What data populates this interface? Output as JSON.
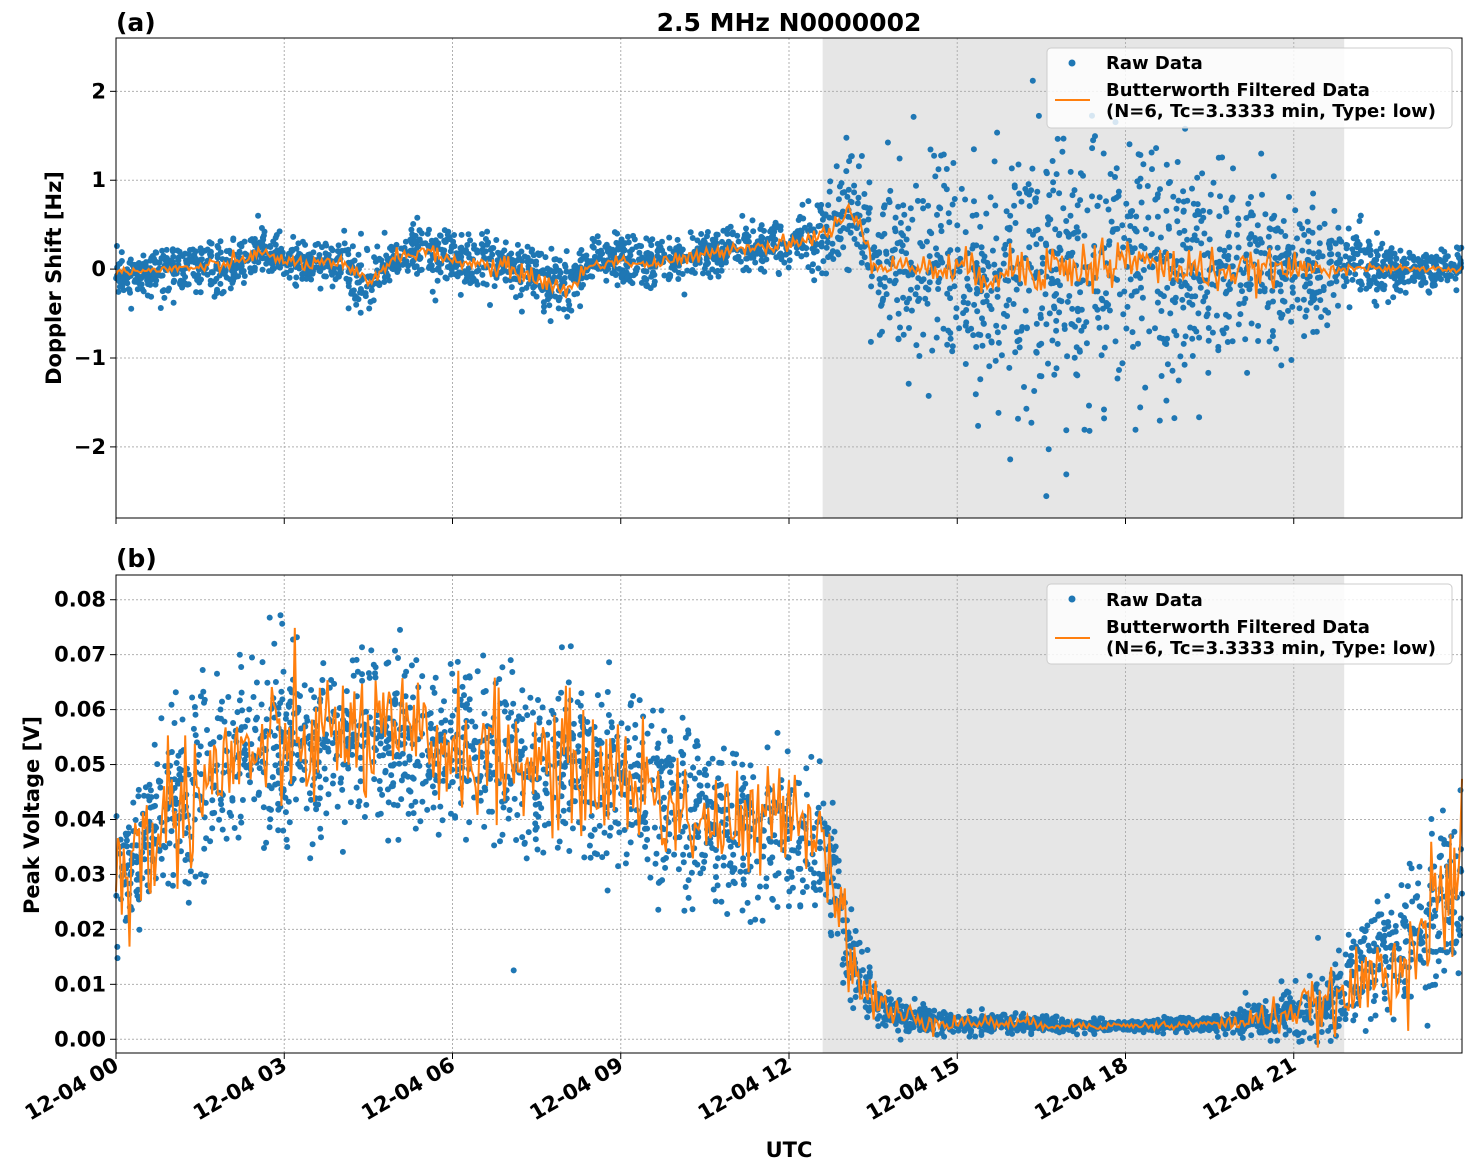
{
  "colors": {
    "raw": "#1f77b4",
    "filtered": "#ff7f0e",
    "shade": "#e6e6e6",
    "grid": "#b0b0b0"
  },
  "figure": {
    "title": "2.5 MHz N0000002",
    "xlabel": "UTC",
    "x_ticks": [
      "12-04 00",
      "12-04 03",
      "12-04 06",
      "12-04 09",
      "12-04 12",
      "12-04 15",
      "12-04 18",
      "12-04 21"
    ]
  },
  "chart_data": [
    {
      "type": "scatter",
      "panel_label": "(a)",
      "ylabel": "Doppler Shift [Hz]",
      "x_unit": "UTC hour of 12-04",
      "xlim": [
        0,
        24
      ],
      "ylim": [
        -2.8,
        2.6
      ],
      "y_ticks": [
        2,
        1,
        0,
        -1,
        -2
      ],
      "y_tick_labels": [
        "2",
        "1",
        "0",
        "−1",
        "−2"
      ],
      "grid": true,
      "legend_position": "top-right",
      "shaded_interval": [
        12.6,
        21.9
      ],
      "x_ticks_labeled": false,
      "series": [
        {
          "name": "Raw Data",
          "style": "points",
          "x": [
            0,
            0.5,
            1,
            1.5,
            1.75,
            2,
            2.5,
            3,
            3.5,
            4,
            4.5,
            5,
            5.5,
            6,
            6.5,
            7,
            7.5,
            8,
            8.5,
            9,
            9.5,
            10,
            10.5,
            11,
            11.5,
            12,
            12.5,
            12.8,
            13,
            13.3,
            13.5,
            14,
            14.5,
            15,
            15.5,
            16,
            16.5,
            17,
            17.5,
            18,
            18.5,
            19,
            19.5,
            20,
            20.5,
            21,
            21.5,
            22,
            22.5,
            23,
            23.5,
            24
          ],
          "center": [
            -0.05,
            -0.05,
            0,
            0,
            0.05,
            0,
            0.2,
            0.1,
            0.05,
            0.05,
            -0.15,
            0.15,
            0.2,
            0.1,
            0.05,
            0,
            -0.1,
            -0.2,
            0.1,
            0.1,
            0.05,
            0.1,
            0.15,
            0.25,
            0.25,
            0.3,
            0.35,
            0.5,
            0.65,
            0.55,
            0.05,
            0.05,
            0,
            0,
            -0.05,
            0,
            0,
            -0.05,
            0.05,
            0,
            0,
            0,
            0,
            0,
            0,
            0,
            0,
            0.05,
            0,
            0,
            0,
            0
          ],
          "spread": [
            0.3,
            0.3,
            0.35,
            0.4,
            0.5,
            0.35,
            0.35,
            0.35,
            0.35,
            0.45,
            0.4,
            0.35,
            0.4,
            0.4,
            0.4,
            0.5,
            0.45,
            0.5,
            0.35,
            0.35,
            0.35,
            0.35,
            0.35,
            0.35,
            0.35,
            0.35,
            0.5,
            0.7,
            0.9,
            1.0,
            1.1,
            1.2,
            1.3,
            1.4,
            1.6,
            1.9,
            2.0,
            2.1,
            2.0,
            2.0,
            1.9,
            1.8,
            1.6,
            1.4,
            1.2,
            1.0,
            0.8,
            0.6,
            0.4,
            0.35,
            0.3,
            0.3
          ]
        },
        {
          "name": "Butterworth Filtered Data\n(N=6, Tc=3.3333 min, Type: low)",
          "style": "line",
          "x": [
            0,
            0.5,
            1,
            1.5,
            2,
            2.5,
            3,
            3.5,
            4,
            4.5,
            5,
            5.5,
            6,
            6.5,
            7,
            7.5,
            8,
            8.5,
            9,
            9.5,
            10,
            10.5,
            11,
            11.5,
            12,
            12.5,
            12.8,
            13,
            13.3,
            13.5,
            14,
            14.5,
            15,
            15.5,
            16,
            16.5,
            17,
            17.5,
            18,
            18.5,
            19,
            19.5,
            20,
            20.5,
            21,
            21.5,
            22,
            22.5,
            23,
            23.5,
            24
          ],
          "y": [
            -0.02,
            -0.02,
            0.0,
            0.02,
            0.05,
            0.18,
            0.1,
            0.05,
            0.05,
            -0.15,
            0.15,
            0.2,
            0.1,
            0.05,
            0.0,
            -0.1,
            -0.25,
            0.05,
            0.1,
            0.05,
            0.1,
            0.15,
            0.25,
            0.25,
            0.3,
            0.35,
            0.45,
            0.6,
            0.55,
            0.05,
            0.05,
            0.0,
            0.0,
            -0.05,
            0.0,
            0.05,
            0.0,
            0.05,
            0.1,
            0.05,
            0.0,
            0.0,
            -0.05,
            0.0,
            0.0,
            0.0,
            0.02,
            0.0,
            0.0,
            0.0,
            0.0
          ],
          "noise": [
            0.02,
            0.02,
            0.03,
            0.04,
            0.04,
            0.04,
            0.04,
            0.04,
            0.05,
            0.05,
            0.04,
            0.04,
            0.04,
            0.05,
            0.06,
            0.06,
            0.06,
            0.04,
            0.04,
            0.04,
            0.04,
            0.04,
            0.04,
            0.04,
            0.05,
            0.06,
            0.08,
            0.08,
            0.08,
            0.05,
            0.06,
            0.08,
            0.1,
            0.12,
            0.14,
            0.16,
            0.16,
            0.16,
            0.16,
            0.14,
            0.13,
            0.12,
            0.11,
            0.1,
            0.08,
            0.05,
            0.03,
            0.02,
            0.02,
            0.02,
            0.02
          ]
        }
      ]
    },
    {
      "type": "scatter",
      "panel_label": "(b)",
      "ylabel": "Peak Voltage [V]",
      "x_unit": "UTC hour of 12-04",
      "xlim": [
        0,
        24
      ],
      "ylim": [
        -0.0025,
        0.0845
      ],
      "y_ticks": [
        0.08,
        0.07,
        0.06,
        0.05,
        0.04,
        0.03,
        0.02,
        0.01,
        0.0
      ],
      "y_tick_labels": [
        "0.08",
        "0.07",
        "0.06",
        "0.05",
        "0.04",
        "0.03",
        "0.02",
        "0.01",
        "0.00"
      ],
      "grid": true,
      "legend_position": "top-right",
      "shaded_interval": [
        12.6,
        21.9
      ],
      "series": [
        {
          "name": "Raw Data",
          "style": "points",
          "x": [
            0,
            0.5,
            1,
            1.5,
            2,
            2.5,
            3,
            3.5,
            4,
            4.5,
            5,
            5.5,
            6,
            6.5,
            7,
            7.5,
            8,
            8.5,
            9,
            9.5,
            10,
            10.5,
            11,
            11.5,
            12,
            12.5,
            12.8,
            13,
            13.3,
            13.6,
            14,
            14.5,
            15,
            16,
            17,
            18,
            19,
            20,
            20.5,
            21,
            21.5,
            22,
            22.5,
            23,
            23.5,
            24
          ],
          "center": [
            0.03,
            0.034,
            0.042,
            0.046,
            0.05,
            0.052,
            0.053,
            0.054,
            0.055,
            0.055,
            0.054,
            0.054,
            0.053,
            0.052,
            0.051,
            0.05,
            0.05,
            0.048,
            0.048,
            0.045,
            0.042,
            0.04,
            0.038,
            0.038,
            0.038,
            0.035,
            0.03,
            0.018,
            0.01,
            0.006,
            0.004,
            0.0035,
            0.003,
            0.003,
            0.0025,
            0.0025,
            0.0025,
            0.003,
            0.004,
            0.005,
            0.006,
            0.01,
            0.015,
            0.018,
            0.022,
            0.03
          ],
          "spread": [
            0.018,
            0.016,
            0.02,
            0.022,
            0.024,
            0.022,
            0.022,
            0.022,
            0.022,
            0.021,
            0.021,
            0.021,
            0.021,
            0.021,
            0.021,
            0.021,
            0.02,
            0.021,
            0.022,
            0.022,
            0.021,
            0.02,
            0.019,
            0.018,
            0.018,
            0.016,
            0.014,
            0.012,
            0.01,
            0.006,
            0.004,
            0.003,
            0.0025,
            0.002,
            0.0015,
            0.0012,
            0.0015,
            0.003,
            0.005,
            0.006,
            0.008,
            0.01,
            0.013,
            0.016,
            0.018,
            0.022
          ]
        },
        {
          "name": "Butterworth Filtered Data\n(N=6, Tc=3.3333 min, Type: low)",
          "style": "line",
          "x": [
            0,
            0.5,
            1,
            1.5,
            2,
            2.5,
            3,
            3.5,
            4,
            4.5,
            5,
            5.5,
            6,
            6.5,
            7,
            7.5,
            8,
            8.5,
            9,
            9.5,
            10,
            10.5,
            11,
            11.5,
            12,
            12.5,
            12.8,
            13,
            13.3,
            13.6,
            14,
            14.5,
            15,
            16,
            17,
            18,
            19,
            20,
            20.5,
            21,
            21.5,
            22,
            22.5,
            23,
            23.5,
            24
          ],
          "y": [
            0.03,
            0.034,
            0.042,
            0.046,
            0.05,
            0.052,
            0.053,
            0.054,
            0.056,
            0.055,
            0.054,
            0.054,
            0.053,
            0.052,
            0.051,
            0.05,
            0.05,
            0.048,
            0.048,
            0.045,
            0.042,
            0.04,
            0.038,
            0.038,
            0.045,
            0.038,
            0.032,
            0.018,
            0.01,
            0.006,
            0.004,
            0.0035,
            0.003,
            0.003,
            0.0025,
            0.0025,
            0.0025,
            0.003,
            0.004,
            0.005,
            0.006,
            0.008,
            0.012,
            0.016,
            0.022,
            0.03
          ],
          "noise": [
            0.007,
            0.006,
            0.007,
            0.006,
            0.006,
            0.006,
            0.006,
            0.006,
            0.006,
            0.006,
            0.006,
            0.006,
            0.006,
            0.006,
            0.006,
            0.006,
            0.006,
            0.006,
            0.006,
            0.006,
            0.006,
            0.006,
            0.005,
            0.005,
            0.005,
            0.005,
            0.005,
            0.004,
            0.003,
            0.0025,
            0.0015,
            0.001,
            0.0008,
            0.0006,
            0.0004,
            0.0003,
            0.0004,
            0.0008,
            0.0015,
            0.002,
            0.0025,
            0.003,
            0.004,
            0.005,
            0.006,
            0.007
          ]
        }
      ]
    }
  ]
}
